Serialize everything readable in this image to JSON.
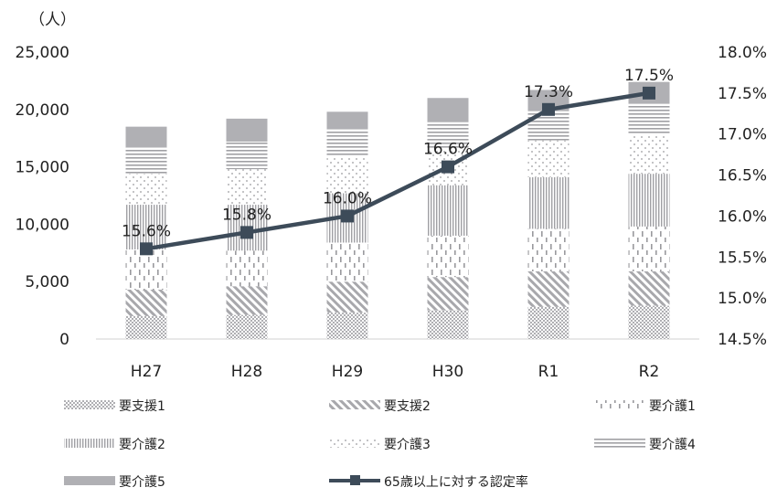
{
  "chart_data": {
    "type": "bar+line",
    "unit_label": "（人）",
    "categories": [
      "H27",
      "H28",
      "H29",
      "H30",
      "R1",
      "R2"
    ],
    "series": [
      {
        "name": "要支援1",
        "values": [
          2000,
          2100,
          2300,
          2500,
          2800,
          2900
        ],
        "pattern": "pat-dots"
      },
      {
        "name": "要支援2",
        "values": [
          2300,
          2500,
          2700,
          2900,
          3100,
          3000
        ],
        "pattern": "pat-diag"
      },
      {
        "name": "要介護1",
        "values": [
          3500,
          3100,
          3400,
          3600,
          3700,
          3900
        ],
        "pattern": "pat-dash"
      },
      {
        "name": "要介護2",
        "values": [
          3900,
          4000,
          4300,
          4400,
          4500,
          4600
        ],
        "pattern": "pat-vert"
      },
      {
        "name": "要介護3",
        "values": [
          2700,
          3100,
          3200,
          3100,
          3200,
          3400
        ],
        "pattern": "pat-sparse"
      },
      {
        "name": "要介護4",
        "values": [
          2300,
          2400,
          2400,
          2500,
          2600,
          2700
        ],
        "pattern": "pat-horiz"
      },
      {
        "name": "要介護5",
        "values": [
          1800,
          2000,
          1500,
          2000,
          1800,
          1900
        ],
        "pattern": "pat-solid"
      }
    ],
    "line_series": {
      "name": "65歳以上に対する認定率",
      "values": [
        15.6,
        15.8,
        16.0,
        16.6,
        17.3,
        17.5
      ],
      "labels": [
        "15.6%",
        "15.8%",
        "16.0%",
        "16.6%",
        "17.3%",
        "17.5%"
      ],
      "color": "#3d4b59"
    },
    "y_left": {
      "min": 0,
      "max": 25000,
      "ticks": [
        0,
        5000,
        10000,
        15000,
        20000,
        25000
      ],
      "tick_labels": [
        "0",
        "5,000",
        "10,000",
        "15,000",
        "20,000",
        "25,000"
      ]
    },
    "y_right": {
      "min": 14.5,
      "max": 18.0,
      "ticks": [
        14.5,
        15.0,
        15.5,
        16.0,
        16.5,
        17.0,
        17.5,
        18.0
      ],
      "tick_labels": [
        "14.5%",
        "15.0%",
        "15.5%",
        "16.0%",
        "16.5%",
        "17.0%",
        "17.5%",
        "18.0%"
      ]
    },
    "grid": false,
    "legend_position": "bottom",
    "colors": {
      "bar_fill": "#b0b0b4",
      "line": "#3d4b59"
    }
  }
}
